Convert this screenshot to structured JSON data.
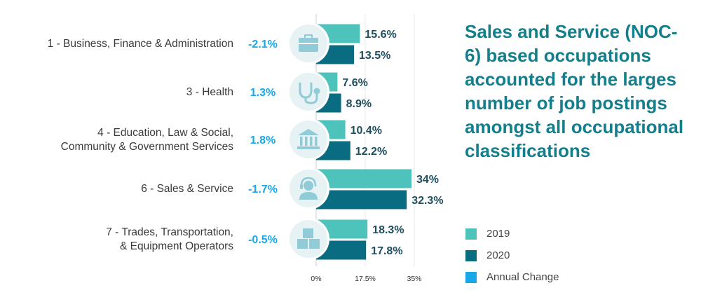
{
  "headline": "Sales and Service (NOC-6) based occupations accounted for the larges number of job postings amongst all occupational classifications",
  "colors": {
    "y2019": "#4ec3bb",
    "y2020": "#0a6c80",
    "change": "#1aa7e8",
    "icon_bg": "#e7f2f4",
    "icon_fg": "#90cbd7"
  },
  "legend": [
    {
      "label": "2019",
      "color": "#4ec3bb"
    },
    {
      "label": "2020",
      "color": "#0a6c80"
    },
    {
      "label": "Annual Change",
      "color": "#1aa7e8"
    }
  ],
  "chart_data": {
    "type": "bar",
    "orientation": "horizontal",
    "title": "",
    "xlabel": "",
    "ylabel": "",
    "xlim": [
      0,
      35
    ],
    "ticks": [
      0,
      17.5,
      35
    ],
    "tick_labels": [
      "0%",
      "17.5%",
      "35%"
    ],
    "categories": [
      [
        "1 - Business, Finance & Administration"
      ],
      [
        "3 - Health"
      ],
      [
        "4 - Education, Law & Social,",
        "Community & Government Services"
      ],
      [
        "6 - Sales & Service"
      ],
      [
        "7 - Trades, Transportation,",
        "& Equipment Operators"
      ]
    ],
    "icons": [
      "briefcase-icon",
      "stethoscope-icon",
      "government-building-icon",
      "headset-agent-icon",
      "boxes-icon"
    ],
    "series": [
      {
        "name": "2019",
        "values": [
          15.6,
          7.6,
          10.4,
          34,
          18.3
        ],
        "labels": [
          "15.6%",
          "7.6%",
          "10.4%",
          "34%",
          "18.3%"
        ]
      },
      {
        "name": "2020",
        "values": [
          13.5,
          8.9,
          12.2,
          32.3,
          17.8
        ],
        "labels": [
          "13.5%",
          "8.9%",
          "12.2%",
          "32.3%",
          "17.8%"
        ]
      }
    ],
    "annual_change": {
      "values": [
        -2.1,
        1.3,
        1.8,
        -1.7,
        -0.5
      ],
      "labels": [
        "-2.1%",
        "1.3%",
        "1.8%",
        "-1.7%",
        "-0.5%"
      ]
    }
  }
}
